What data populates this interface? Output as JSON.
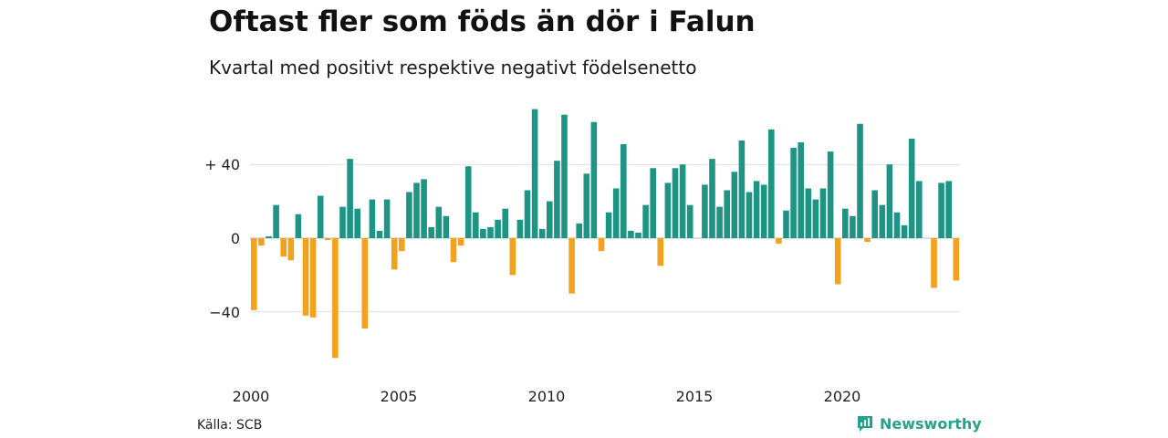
{
  "title": "Oftast fler som föds än dör i Falun",
  "subtitle": "Kvartal med positivt respektive negativt födelsenetto",
  "source": "Källa: SCB",
  "brand": {
    "name": "Newsworthy",
    "icon": "newsworthy-logo-icon"
  },
  "colors": {
    "positive": "#1e9584",
    "negative": "#f4a11d",
    "grid": "#dddddd",
    "axis": "#555555"
  },
  "chart_data": {
    "type": "bar",
    "title": "Oftast fler som föds än dör i Falun",
    "subtitle": "Kvartal med positivt respektive negativt födelsenetto",
    "xlabel": "",
    "ylabel": "",
    "ylim": [
      -68,
      72
    ],
    "x_start": 2000,
    "periods_per_year": 4,
    "yticks": [
      40,
      0,
      -40
    ],
    "ytick_labels": [
      "+ 40",
      "0",
      "−40"
    ],
    "xticks": [
      2000,
      2005,
      2010,
      2015,
      2020
    ],
    "xtick_labels": [
      "2000",
      "2005",
      "2010",
      "2015",
      "2020"
    ],
    "grid": true,
    "values": [
      -39,
      -4,
      1,
      18,
      -10,
      -12,
      13,
      -42,
      -43,
      23,
      -1,
      -65,
      17,
      43,
      16,
      -49,
      21,
      4,
      21,
      -17,
      -7,
      25,
      30,
      32,
      6,
      17,
      12,
      -13,
      -4,
      39,
      14,
      5,
      6,
      10,
      16,
      -20,
      10,
      26,
      70,
      5,
      20,
      42,
      67,
      -30,
      8,
      35,
      63,
      -7,
      14,
      27,
      51,
      4,
      3,
      18,
      38,
      -15,
      30,
      38,
      40,
      18,
      0,
      29,
      43,
      17,
      26,
      36,
      53,
      25,
      31,
      29,
      59,
      -3,
      15,
      49,
      52,
      27,
      21,
      27,
      47,
      -25,
      16,
      12,
      62,
      -2,
      26,
      18,
      40,
      14,
      7,
      54,
      31,
      0,
      -27,
      30,
      31,
      -23
    ]
  }
}
